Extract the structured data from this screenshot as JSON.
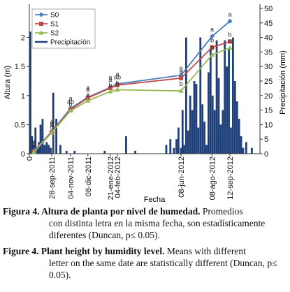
{
  "chart_data": {
    "type": "line",
    "xlabel": "Fecha",
    "ylabel": "Altura (m)",
    "y2label": "Precipitación (mm)",
    "ylim": [
      0,
      2.5
    ],
    "y2lim": [
      0,
      50
    ],
    "yticks": [
      "0",
      "0.5",
      "1",
      "1.5",
      "2"
    ],
    "y2ticks": [
      "0",
      "5",
      "10",
      "15",
      "20",
      "25",
      "30",
      "35",
      "40",
      "45",
      "50"
    ],
    "xlim": [
      "2011-08-15",
      "2012-11-10"
    ],
    "xticks": [
      {
        "date": "2011-08-15",
        "label": "0"
      },
      {
        "date": "2011-09-28",
        "label": "28-sep-2011"
      },
      {
        "date": "2011-11-04",
        "label": "04-nov-2011"
      },
      {
        "date": "2011-12-08",
        "label": "08-dic-2011"
      },
      {
        "date": "2012-01-21",
        "label": "21-ene-2012"
      },
      {
        "date": "2012-02-04",
        "label": "04-feb-2012"
      },
      {
        "date": "2012-06-08",
        "label": "08-jun-2012"
      },
      {
        "date": "2012-08-08",
        "label": "08-ago-2012"
      },
      {
        "date": "2012-09-12",
        "label": "12-sep-2012"
      }
    ],
    "legend_position": "top-left",
    "series": [
      {
        "name": "S0",
        "color": "#4a7ebb",
        "marker": "diamond",
        "x": [
          "2011-08-24",
          "2011-09-28",
          "2011-11-04",
          "2011-12-08",
          "2012-01-21",
          "2012-02-04",
          "2012-06-08",
          "2012-08-08",
          "2012-09-12"
        ],
        "values": [
          0.05,
          0.38,
          0.78,
          0.97,
          1.14,
          1.2,
          1.35,
          2.02,
          2.28
        ],
        "letters": [
          "a",
          "a",
          "a",
          "a",
          "a",
          "a",
          "a",
          "a",
          "a"
        ]
      },
      {
        "name": "S1",
        "color": "#be4b48",
        "marker": "square",
        "x": [
          "2011-08-24",
          "2011-09-28",
          "2011-11-04",
          "2011-12-08",
          "2012-01-21",
          "2012-02-04",
          "2012-06-08",
          "2012-08-08",
          "2012-09-12"
        ],
        "values": [
          0.04,
          0.37,
          0.76,
          0.96,
          1.13,
          1.18,
          1.3,
          1.83,
          1.93
        ],
        "letters": [
          "a",
          "a",
          "ab",
          "a",
          "a",
          "ab",
          "a",
          "b",
          "b"
        ]
      },
      {
        "name": "S2",
        "color": "#98b954",
        "marker": "triangle",
        "x": [
          "2011-08-24",
          "2011-09-28",
          "2011-11-04",
          "2011-12-08",
          "2012-01-21",
          "2012-02-04",
          "2012-06-08",
          "2012-08-08",
          "2012-09-12"
        ],
        "values": [
          0.03,
          0.36,
          0.74,
          0.91,
          1.07,
          1.1,
          1.08,
          1.7,
          1.82
        ],
        "letters": [
          "a",
          "a",
          "b",
          "a",
          "b",
          "b",
          "b",
          "b",
          "c"
        ]
      },
      {
        "name": "Precipitación",
        "color": "#1f3f7a",
        "axis": "right",
        "kind": "bars",
        "x": [
          "2011-08-17",
          "2011-08-20",
          "2011-08-23",
          "2011-08-27",
          "2011-08-31",
          "2011-09-03",
          "2011-09-06",
          "2011-09-10",
          "2011-09-14",
          "2011-09-18",
          "2011-09-22",
          "2011-09-26",
          "2011-10-01",
          "2011-10-07",
          "2011-10-15",
          "2011-10-27",
          "2011-11-12",
          "2012-01-10",
          "2012-02-21",
          "2012-03-10",
          "2012-05-10",
          "2012-05-18",
          "2012-05-25",
          "2012-05-30",
          "2012-06-03",
          "2012-06-08",
          "2012-06-11",
          "2012-06-14",
          "2012-06-18",
          "2012-06-22",
          "2012-06-26",
          "2012-06-30",
          "2012-07-04",
          "2012-07-08",
          "2012-07-12",
          "2012-07-16",
          "2012-07-20",
          "2012-07-24",
          "2012-07-28",
          "2012-08-01",
          "2012-08-05",
          "2012-08-09",
          "2012-08-13",
          "2012-08-17",
          "2012-08-21",
          "2012-08-25",
          "2012-08-29",
          "2012-09-02",
          "2012-09-06",
          "2012-09-10",
          "2012-09-14",
          "2012-09-18",
          "2012-09-22",
          "2012-09-26",
          "2012-09-30",
          "2012-10-04",
          "2012-10-08",
          "2012-10-14",
          "2012-10-25"
        ],
        "values": [
          42,
          6,
          3,
          9,
          2,
          4,
          10,
          12,
          3,
          4,
          3,
          2,
          21,
          12,
          3,
          1,
          1,
          1,
          6,
          1,
          3,
          5,
          2,
          5,
          9,
          2,
          15,
          3,
          40,
          8,
          20,
          15,
          25,
          24,
          9,
          40,
          17,
          11,
          3,
          28,
          36,
          20,
          15,
          39,
          26,
          10,
          15,
          39,
          30,
          36,
          9,
          40,
          25,
          18,
          12,
          6,
          2,
          4,
          2
        ]
      }
    ]
  },
  "caption": {
    "es_label": "Figura 4. Altura de planta por nivel de humedad.",
    "es_text_1": "Promedios",
    "es_text_2": "con distinta letra en la misma fecha, son estadísticamente diferentes (Duncan, p≤ 0.05).",
    "en_label": "Figure 4. Plant height by humidity level.",
    "en_text_1": "Means with different",
    "en_text_2": "letter on the same date are statistically different (Duncan, p≤ 0.05)."
  }
}
